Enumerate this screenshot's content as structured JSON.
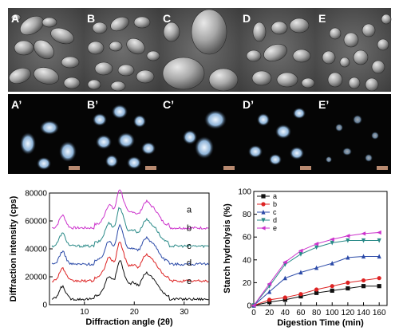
{
  "micrographs": {
    "sem_labels": [
      "A",
      "B",
      "C",
      "D",
      "E"
    ],
    "plm_labels": [
      "A’",
      "B’",
      "C’",
      "D’",
      "E’"
    ]
  },
  "chart_data": [
    {
      "type": "line",
      "xlabel": "Diffraction angle (2θ)",
      "ylabel": "Diffraction intensity (cps)",
      "xlim": [
        3,
        35
      ],
      "ylim": [
        0,
        80000
      ],
      "x_ticks": [
        "10",
        "20",
        "30"
      ],
      "y_ticks": [
        "0",
        "20000",
        "40000",
        "60000",
        "80000"
      ],
      "grid": false,
      "curve_labels": [
        "a",
        "b",
        "c",
        "d",
        "e"
      ],
      "series": [
        {
          "name": "a",
          "color": "#cc33cc",
          "baseline": 55000
        },
        {
          "name": "b",
          "color": "#2a8a88",
          "baseline": 42000
        },
        {
          "name": "c",
          "color": "#2b4aa8",
          "baseline": 29000
        },
        {
          "name": "d",
          "color": "#dd2222",
          "baseline": 17000
        },
        {
          "name": "e",
          "color": "#111111",
          "baseline": 4000
        }
      ],
      "peaks": [
        {
          "x": 5.6,
          "height": 9000,
          "width": 0.9
        },
        {
          "x": 15.0,
          "height": 14000,
          "width": 1.2
        },
        {
          "x": 17.0,
          "height": 22000,
          "width": 0.8
        },
        {
          "x": 18.0,
          "height": 10000,
          "width": 0.8
        },
        {
          "x": 19.7,
          "height": 9000,
          "width": 1.2
        },
        {
          "x": 22.2,
          "height": 14000,
          "width": 1.2
        },
        {
          "x": 24.0,
          "height": 10000,
          "width": 1.4
        }
      ]
    },
    {
      "type": "line",
      "xlabel": "Digestion Time (min)",
      "ylabel": "Starch hydrolysis (%)",
      "xlim": [
        0,
        170
      ],
      "ylim": [
        0,
        100
      ],
      "x_ticks": [
        "0",
        "20",
        "40",
        "60",
        "80",
        "100",
        "120",
        "140",
        "160"
      ],
      "y_ticks": [
        "0",
        "20",
        "40",
        "60",
        "80",
        "100"
      ],
      "legend_position": "top-left",
      "grid": false,
      "x": [
        0,
        20,
        40,
        60,
        80,
        100,
        120,
        140,
        160
      ],
      "series": [
        {
          "name": "a",
          "marker": "square",
          "color": "#111111",
          "values": [
            0,
            3,
            5,
            8,
            11,
            13,
            15,
            17,
            17
          ]
        },
        {
          "name": "b",
          "marker": "circle",
          "color": "#dd2222",
          "values": [
            0,
            5,
            7,
            10,
            14,
            17,
            20,
            22,
            24
          ]
        },
        {
          "name": "c",
          "marker": "triangle-up",
          "color": "#2b4aa8",
          "values": [
            0,
            12,
            24,
            29,
            33,
            37,
            42,
            43,
            43
          ]
        },
        {
          "name": "d",
          "marker": "triangle-down",
          "color": "#2a8a88",
          "values": [
            0,
            17,
            36,
            45,
            51,
            55,
            57,
            57,
            57
          ]
        },
        {
          "name": "e",
          "marker": "triangle-left",
          "color": "#cc33cc",
          "values": [
            0,
            19,
            38,
            48,
            54,
            58,
            61,
            63,
            64
          ]
        }
      ]
    }
  ]
}
